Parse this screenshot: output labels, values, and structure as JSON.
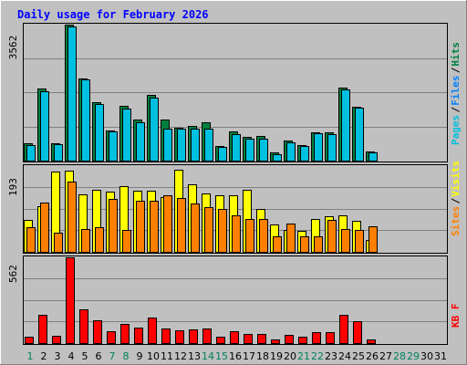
{
  "chart_data": {
    "type": "bar",
    "title": "Daily usage for February 2026",
    "days": [
      "1",
      "2",
      "3",
      "4",
      "5",
      "6",
      "7",
      "8",
      "9",
      "10",
      "11",
      "12",
      "13",
      "14",
      "15",
      "16",
      "17",
      "18",
      "19",
      "20",
      "21",
      "22",
      "23",
      "24",
      "25",
      "26",
      "27",
      "28",
      "29",
      "30",
      "31"
    ],
    "weekend_days": [
      1,
      7,
      8,
      14,
      15,
      21,
      22,
      28,
      29
    ],
    "panels": [
      {
        "id": "hits",
        "max_label": "3562",
        "ylim": [
          0,
          3562
        ],
        "legend": [
          {
            "label": "Pages",
            "color": "#00c0e0"
          },
          {
            "label": "Files",
            "color": "#0080ff"
          },
          {
            "label": "Hits",
            "color": "#008040"
          }
        ],
        "series": [
          {
            "name": "Hits",
            "color": "#008040",
            "values": [
              450,
              1870,
              450,
              3530,
              2140,
              1520,
              780,
              1420,
              1070,
              1700,
              1070,
              860,
              910,
              1000,
              380,
              770,
              610,
              630,
              220,
              530,
              410,
              730,
              730,
              1910,
              1410,
              240,
              0,
              0,
              0,
              0,
              0
            ]
          },
          {
            "name": "Files",
            "color": "#00c0e0",
            "values": [
              410,
              1800,
              420,
              3500,
              2110,
              1470,
              760,
              1360,
              990,
              1640,
              830,
              820,
              840,
              830,
              350,
              700,
              570,
              560,
              170,
              480,
              380,
              710,
              700,
              1860,
              1370,
              210,
              0,
              0,
              0,
              0,
              0
            ]
          }
        ]
      },
      {
        "id": "visits",
        "max_label": "193",
        "ylim": [
          0,
          193
        ],
        "legend": [
          {
            "label": "Sites",
            "color": "#ff8000"
          },
          {
            "label": "Visits",
            "color": "#ffff00"
          }
        ],
        "series": [
          {
            "name": "Visits",
            "color": "#ffff00",
            "values": [
              72,
              102,
              178,
              181,
              129,
              138,
              135,
              147,
              137,
              136,
              121,
              182,
              150,
              130,
              126,
              126,
              138,
              95,
              61,
              49,
              46,
              74,
              80,
              81,
              69,
              26,
              0,
              0,
              0,
              0,
              0
            ]
          },
          {
            "name": "Sites",
            "color": "#ff8000",
            "values": [
              54,
              109,
              43,
              156,
              50,
              54,
              118,
              49,
              113,
              113,
              126,
              120,
              108,
              100,
              95,
              82,
              73,
              73,
              35,
              63,
              35,
              35,
              72,
              51,
              49,
              57,
              0,
              0,
              0,
              0,
              0
            ]
          }
        ]
      },
      {
        "id": "kbytes",
        "max_label": "562",
        "ylim": [
          0,
          562
        ],
        "legend": [
          {
            "label": "KB F",
            "color": "#ff0000"
          }
        ],
        "series": [
          {
            "name": "KB F",
            "color": "#ff0000",
            "values": [
              44,
              183,
              50,
              557,
              217,
              148,
              78,
              127,
              102,
              168,
              96,
              84,
              87,
              93,
              44,
              74,
              60,
              58,
              22,
              52,
              42,
              71,
              70,
              186,
              140,
              25,
              0,
              0,
              0,
              0,
              0
            ]
          }
        ]
      }
    ]
  }
}
